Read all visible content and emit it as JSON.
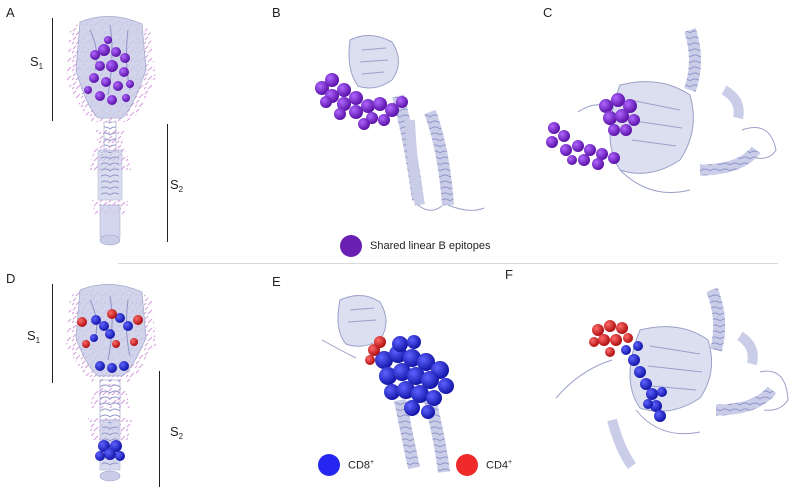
{
  "panels": {
    "A": "A",
    "B": "B",
    "C": "C",
    "D": "D",
    "E": "E",
    "F": "F"
  },
  "segments": {
    "s1": "S",
    "s1_sub": "1",
    "s2": "S",
    "s2_sub": "2"
  },
  "legend": {
    "shared_b": {
      "label": "Shared linear B epitopes",
      "color": "#6a1fb3"
    },
    "cd8": {
      "label": "CD8",
      "sup": "+",
      "color": "#2626f0"
    },
    "cd4": {
      "label": "CD4",
      "sup": "+",
      "color": "#f02a2a"
    }
  },
  "colors": {
    "ribbon": "#c9cde8",
    "ribbon_edge": "#9aa0c8",
    "glycan": "#d79fe0",
    "purple": "#7b22d6",
    "blue": "#1f24e8",
    "red": "#ee2222"
  }
}
